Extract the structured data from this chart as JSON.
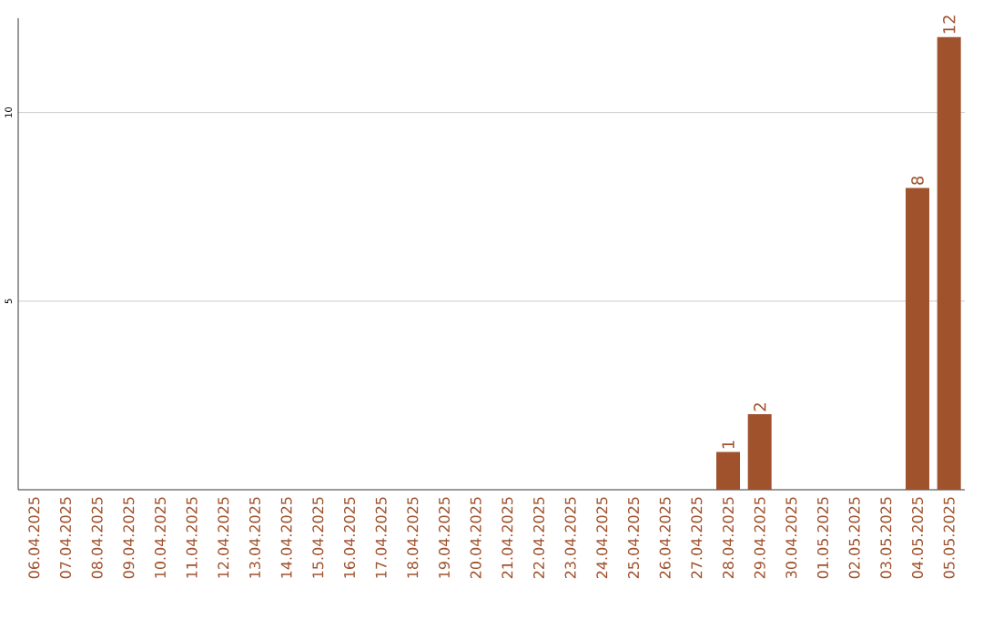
{
  "chart_data": {
    "type": "bar",
    "categories": [
      "06.04.2025",
      "07.04.2025",
      "08.04.2025",
      "09.04.2025",
      "10.04.2025",
      "11.04.2025",
      "12.04.2025",
      "13.04.2025",
      "14.04.2025",
      "15.04.2025",
      "16.04.2025",
      "17.04.2025",
      "18.04.2025",
      "19.04.2025",
      "20.04.2025",
      "21.04.2025",
      "22.04.2025",
      "23.04.2025",
      "24.04.2025",
      "25.04.2025",
      "26.04.2025",
      "27.04.2025",
      "28.04.2025",
      "29.04.2025",
      "30.04.2025",
      "01.05.2025",
      "02.05.2025",
      "03.05.2025",
      "04.05.2025",
      "05.05.2025"
    ],
    "values": [
      0,
      0,
      0,
      0,
      0,
      0,
      0,
      0,
      0,
      0,
      0,
      0,
      0,
      0,
      0,
      0,
      0,
      0,
      0,
      0,
      0,
      0,
      1,
      2,
      0,
      0,
      0,
      0,
      8,
      12
    ],
    "value_labels": [
      null,
      null,
      null,
      null,
      null,
      null,
      null,
      null,
      null,
      null,
      null,
      null,
      null,
      null,
      null,
      null,
      null,
      null,
      null,
      null,
      null,
      null,
      "1",
      "2",
      null,
      null,
      null,
      null,
      "8",
      "12"
    ],
    "color": "#a0522d",
    "ylim": [
      0,
      12.5
    ],
    "yticks": [
      5,
      10
    ],
    "grid": "y"
  }
}
